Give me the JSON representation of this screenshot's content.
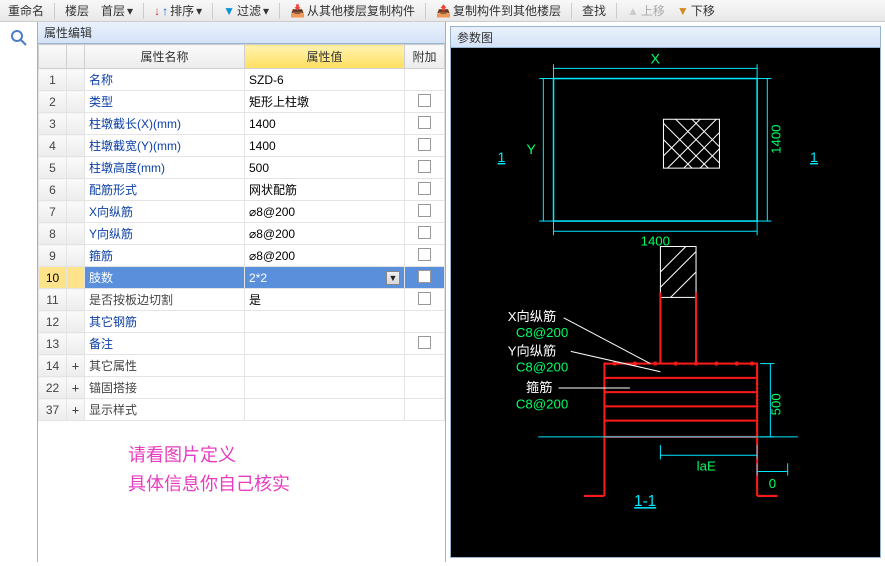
{
  "toolbar": {
    "rename": "重命名",
    "floor": "楼层",
    "first_floor": "首层",
    "sort": "排序",
    "filter": "过滤",
    "copy_from": "从其他楼层复制构件",
    "copy_to": "复制构件到其他楼层",
    "find": "查找",
    "move_up": "上移",
    "move_down": "下移"
  },
  "panel": {
    "title": "属性编辑",
    "col_name": "属性名称",
    "col_value": "属性值",
    "col_extra": "附加"
  },
  "rows": [
    {
      "num": "1",
      "name": "名称",
      "value": "SZD-6",
      "link": true,
      "check": false
    },
    {
      "num": "2",
      "name": "类型",
      "value": "矩形上柱墩",
      "link": true,
      "check": true
    },
    {
      "num": "3",
      "name": "柱墩截长(X)(mm)",
      "value": "1400",
      "link": true,
      "check": true
    },
    {
      "num": "4",
      "name": "柱墩截宽(Y)(mm)",
      "value": "1400",
      "link": true,
      "check": true
    },
    {
      "num": "5",
      "name": "柱墩高度(mm)",
      "value": "500",
      "link": true,
      "check": true
    },
    {
      "num": "6",
      "name": "配筋形式",
      "value": "网状配筋",
      "link": true,
      "check": true
    },
    {
      "num": "7",
      "name": "X向纵筋",
      "value": "⌀8@200",
      "link": true,
      "check": true
    },
    {
      "num": "8",
      "name": "Y向纵筋",
      "value": "⌀8@200",
      "link": true,
      "check": true
    },
    {
      "num": "9",
      "name": "箍筋",
      "value": "⌀8@200",
      "link": true,
      "check": true
    },
    {
      "num": "10",
      "name": "肢数",
      "value": "2*2",
      "link": true,
      "check": true,
      "selected": true,
      "dropdown": true
    },
    {
      "num": "11",
      "name": "是否按板边切割",
      "value": "是",
      "link": false,
      "check": true
    },
    {
      "num": "12",
      "name": "其它钢筋",
      "value": "",
      "link": true,
      "check": false
    },
    {
      "num": "13",
      "name": "备注",
      "value": "",
      "link": true,
      "check": true
    },
    {
      "num": "14",
      "name": "其它属性",
      "value": "",
      "link": false,
      "expand": "+"
    },
    {
      "num": "22",
      "name": "锚固搭接",
      "value": "",
      "link": false,
      "expand": "+"
    },
    {
      "num": "37",
      "name": "显示样式",
      "value": "",
      "link": false,
      "expand": "+"
    }
  ],
  "hint": {
    "line1": "请看图片定义",
    "line2": "具体信息你自己核实"
  },
  "param": {
    "title": "参数图"
  },
  "diagram": {
    "colors": {
      "bg": "#000000",
      "cyan": "#00e8ff",
      "green": "#00ff66",
      "red": "#ff1a1a",
      "white": "#ffffff"
    },
    "plan": {
      "X_label": "X",
      "Y_label": "Y",
      "dim_x": "1400",
      "dim_y": "1400",
      "one": "1"
    },
    "section": {
      "label_x": "X向纵筋",
      "spec_x": "C8@200",
      "label_y": "Y向纵筋",
      "spec_y": "C8@200",
      "label_stirrup": "箍筋",
      "spec_stirrup": "C8@200",
      "height": "500",
      "anchor": "laE",
      "zero": "0",
      "title": "1-1"
    }
  }
}
